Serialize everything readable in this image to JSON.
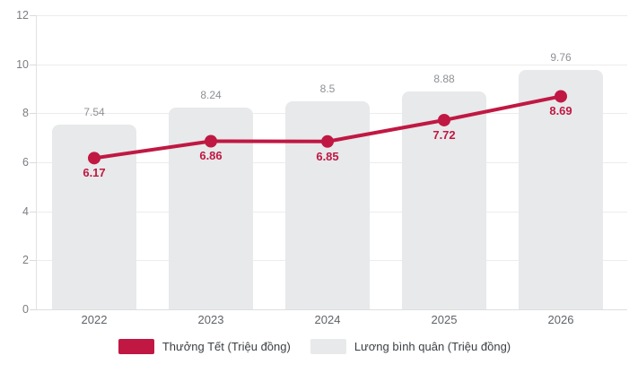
{
  "chart_data": {
    "type": "bar",
    "subtype": "bar-and-line-combo",
    "categories": [
      "2022",
      "2023",
      "2024",
      "2025",
      "2026"
    ],
    "series": [
      {
        "name": "Thưởng Tết (Triệu đồng)",
        "type": "line",
        "color": "#c01843",
        "values": [
          6.17,
          6.86,
          6.85,
          7.72,
          8.69
        ],
        "labels": [
          "6.17",
          "6.86",
          "6.85",
          "7.72",
          "8.69"
        ]
      },
      {
        "name": "Lương bình quân (Triệu đồng)",
        "type": "bar",
        "color": "#e7e9ea",
        "values": [
          7.54,
          8.24,
          8.5,
          8.88,
          9.76
        ],
        "labels": [
          "7.54",
          "8.24",
          "8.5",
          "8.88",
          "9.76"
        ]
      }
    ],
    "title": "",
    "xlabel": "",
    "ylabel": "",
    "ylim": [
      0,
      12
    ],
    "yticks": [
      0,
      2,
      4,
      6,
      8,
      10,
      12
    ],
    "grid": true,
    "legend_position": "bottom"
  },
  "colors": {
    "background": "#ffffff",
    "line_series": "#c01843",
    "bar_series": "#e7e9ea",
    "gridline": "#ececec",
    "axis": "#dfe1e3",
    "y_tick_text": "#7a7d82",
    "x_tick_text": "#5f6368",
    "bar_value_text": "#8d9095",
    "legend_text": "#3c4043"
  }
}
